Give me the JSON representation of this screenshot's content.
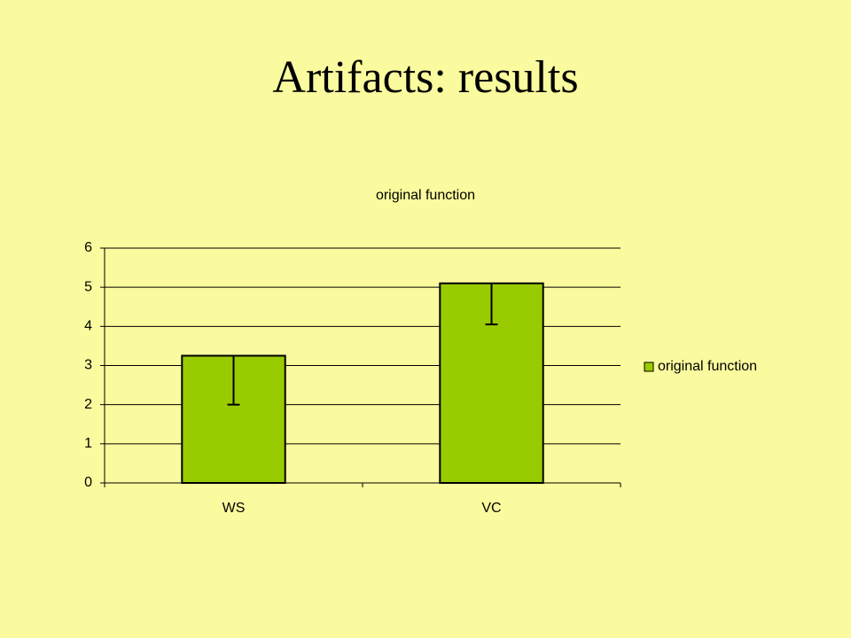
{
  "slide": {
    "title": "Artifacts: results"
  },
  "chart_data": {
    "type": "bar",
    "title": "original function",
    "categories": [
      "WS",
      "VC"
    ],
    "series": [
      {
        "name": "original function",
        "color": "#99cc00",
        "values": [
          3.25,
          5.1
        ],
        "errors": [
          1.25,
          1.05
        ]
      }
    ],
    "ylim": [
      0,
      6
    ],
    "yticks": [
      0,
      1,
      2,
      3,
      4,
      5,
      6
    ],
    "grid": true,
    "legend": "right"
  }
}
